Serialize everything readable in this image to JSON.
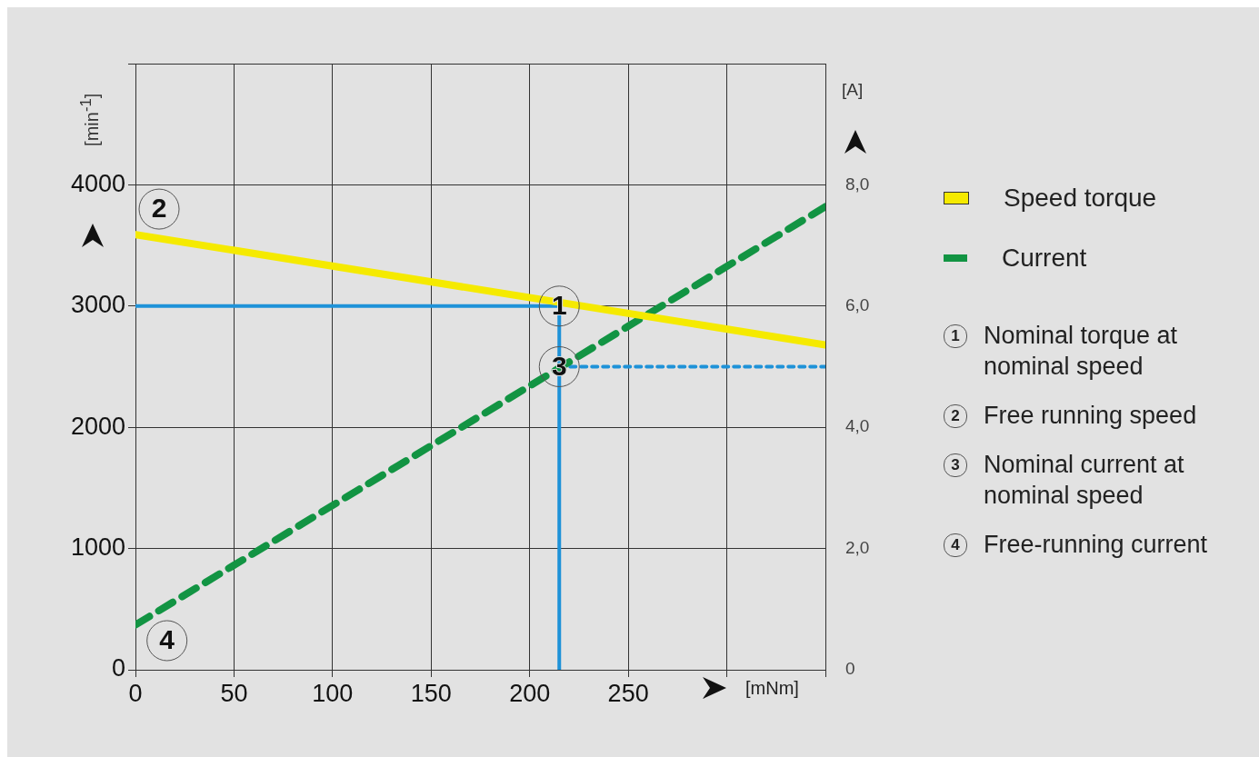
{
  "chart_data": {
    "type": "line",
    "xlabel": "[mNm]",
    "ylabel": "[min$^{-1}$]",
    "y2label": "[A]",
    "xlim": [
      0,
      350
    ],
    "xticks": [
      0,
      50,
      100,
      150,
      200,
      250,
      {
        "value": 300,
        "label": null
      },
      {
        "value": 350,
        "label": null
      }
    ],
    "ylim": [
      0,
      5000
    ],
    "yticks": [
      0,
      1000,
      2000,
      3000,
      4000,
      {
        "value": 5000,
        "label": null
      }
    ],
    "y2lim": [
      0,
      10
    ],
    "y2ticks": [
      0,
      {
        "value": 2,
        "label": "2,0"
      },
      {
        "value": 4,
        "label": "4,0"
      },
      {
        "value": 6,
        "label": "6,0"
      },
      {
        "value": 8,
        "label": "8,0"
      },
      {
        "value": 10,
        "label": null
      }
    ],
    "grid": true,
    "legend": "right",
    "series": [
      {
        "name": "Speed torque",
        "color": "#f5ea00",
        "x": [
          0,
          350
        ],
        "values": [
          3590,
          2680
        ]
      },
      {
        "name": "Current",
        "color": "#129443",
        "axis": "y2",
        "line_style": "dashed",
        "x": [
          0,
          350
        ],
        "values": [
          0.74,
          7.64
        ]
      },
      {
        "color": "#1e92d8",
        "x": [
          0,
          215
        ],
        "values": [
          3000,
          3000
        ]
      },
      {
        "color": "#1e92d8",
        "x": [
          215,
          215
        ],
        "values": [
          0,
          3000
        ]
      },
      {
        "color": "#1e92d8",
        "axis": "y2",
        "line_style": "dashed",
        "x": [
          215,
          350
        ],
        "values": [
          5,
          5
        ]
      }
    ],
    "annotations": [
      {
        "text": "1",
        "x": 215,
        "y": 3000
      },
      {
        "text": "2",
        "x": 12,
        "y": 3800
      },
      {
        "text": "3",
        "x": 215,
        "y": 2500
      },
      {
        "text": "4",
        "x": 16,
        "y": 240
      },
      "Nominal torque at nominal speed",
      "Free running speed",
      "Nominal current at nominal speed",
      "Free-running current"
    ]
  }
}
